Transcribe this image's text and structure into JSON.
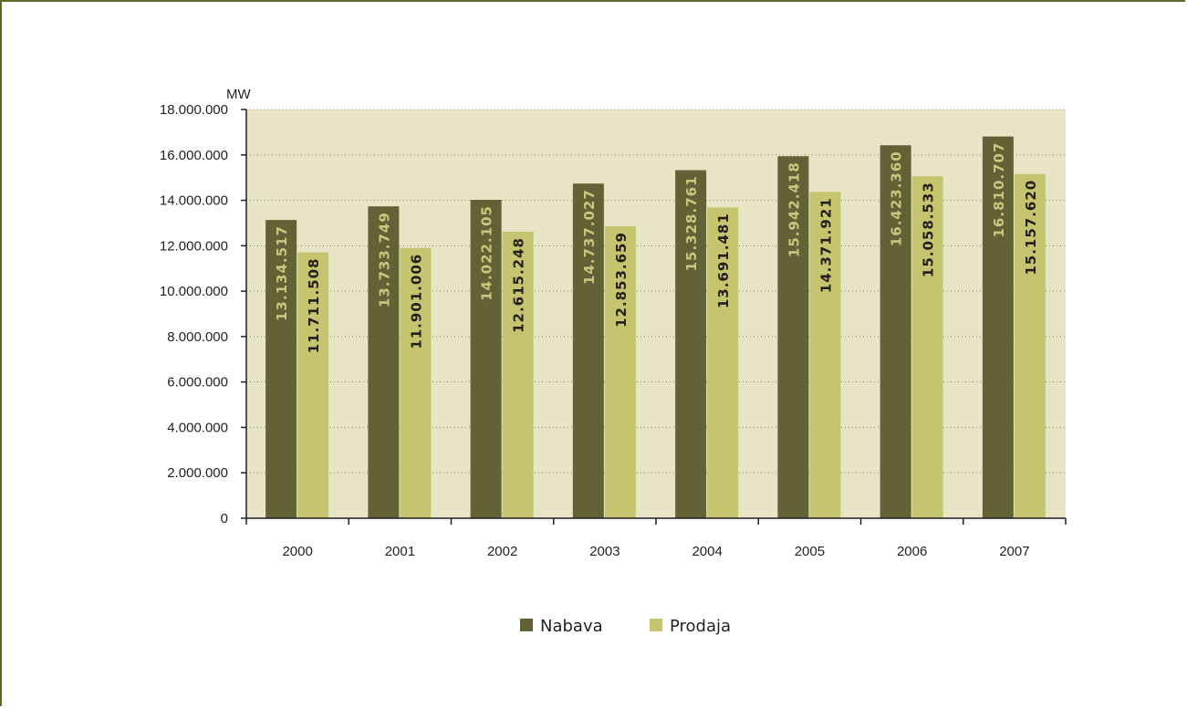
{
  "chart_data": {
    "type": "bar",
    "unit_label": "MW",
    "categories": [
      "2000",
      "2001",
      "2002",
      "2003",
      "2004",
      "2005",
      "2006",
      "2007"
    ],
    "series": [
      {
        "name": "Nabava",
        "color": "#636237",
        "label_color": "#c9c77d",
        "values": [
          13134517,
          13733749,
          14022105,
          14737027,
          15328761,
          15942418,
          16423360,
          16810707
        ],
        "labels": [
          "13.134.517",
          "13.733.749",
          "14.022.105",
          "14.737.027",
          "15.328.761",
          "15.942.418",
          "16.423.360",
          "16.810.707"
        ]
      },
      {
        "name": "Prodaja",
        "color": "#c6c46f",
        "label_color": "#231f20",
        "values": [
          11711508,
          11901006,
          12615248,
          12853659,
          13691481,
          14371921,
          15058533,
          15157620
        ],
        "labels": [
          "11.711.508",
          "11.901.006",
          "12.615.248",
          "12.853.659",
          "13.691.481",
          "14.371.921",
          "15.058.533",
          "15.157.620"
        ]
      }
    ],
    "ylim": [
      0,
      18000000
    ],
    "yticks": [
      0,
      2000000,
      4000000,
      6000000,
      8000000,
      10000000,
      12000000,
      14000000,
      16000000,
      18000000
    ],
    "ytick_labels": [
      "0",
      "2.000.000",
      "4.000.000",
      "6.000.000",
      "8.000.000",
      "10.000.000",
      "12.000.000",
      "14.000.000",
      "16.000.000",
      "18.000.000"
    ],
    "grid": true,
    "plot_background": "#e7e5c5",
    "legend_position": "bottom-center"
  }
}
